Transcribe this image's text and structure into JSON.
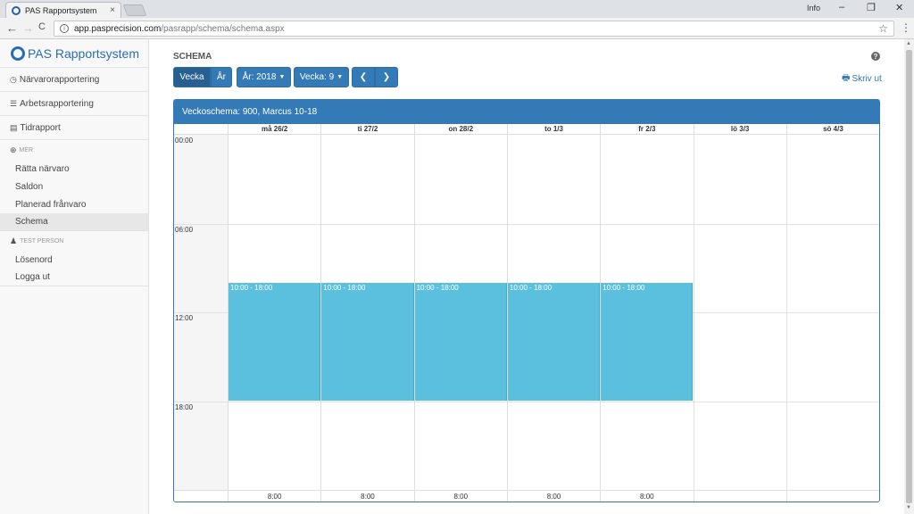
{
  "browser": {
    "tab_title": "PAS Rapportsystem",
    "tab_close": "×",
    "user": "Info",
    "url_host": "app.pasprecision.com",
    "url_path": "/pasrapp/schema/schema.aspx",
    "back": "←",
    "forward": "→",
    "reload": "C",
    "star": "☆",
    "menu": "⋮",
    "minimize": "–",
    "maximize": "❐",
    "close": "✕"
  },
  "sidebar": {
    "brand": "PAS Rapportsystem",
    "items": [
      {
        "label": "Närvarorapportering",
        "icon": "clock-icon",
        "glyph": "◷"
      },
      {
        "label": "Arbetsrapportering",
        "icon": "list-icon",
        "glyph": "☰"
      },
      {
        "label": "Tidrapport",
        "icon": "calendar-icon",
        "glyph": "▤"
      }
    ],
    "section_mer": "MER",
    "mer_items": [
      "Rätta närvaro",
      "Saldon",
      "Planerad frånvaro",
      "Schema"
    ],
    "section_person": "TEST PERSON",
    "person_items": [
      "Lösenord",
      "Logga ut"
    ]
  },
  "main": {
    "title": "SCHEMA",
    "btn_vecka": "Vecka",
    "btn_ar": "År",
    "btn_year": "År: 2018",
    "btn_week": "Vecka: 9",
    "btn_prev": "❮",
    "btn_next": "❯",
    "print": "Skriv ut",
    "help": "?"
  },
  "calendar": {
    "heading": "Veckoschema: 900, Marcus 10-18",
    "days": [
      "må 26/2",
      "ti 27/2",
      "on 28/2",
      "to 1/3",
      "fr 2/3",
      "lö 3/3",
      "sö 4/3"
    ],
    "times": [
      "00:00",
      "06:00",
      "12:00",
      "18:00"
    ],
    "events": [
      {
        "day": 0,
        "label": "10:00 - 18:00",
        "start": 10,
        "end": 18
      },
      {
        "day": 1,
        "label": "10:00 - 18:00",
        "start": 10,
        "end": 18
      },
      {
        "day": 2,
        "label": "10:00 - 18:00",
        "start": 10,
        "end": 18
      },
      {
        "day": 3,
        "label": "10:00 - 18:00",
        "start": 10,
        "end": 18
      },
      {
        "day": 4,
        "label": "10:00 - 18:00",
        "start": 10,
        "end": 18
      }
    ],
    "totals": [
      "8:00",
      "8:00",
      "8:00",
      "8:00",
      "8:00",
      "",
      ""
    ],
    "event_color": "#5bc0de",
    "accent_color": "#337ab7"
  }
}
